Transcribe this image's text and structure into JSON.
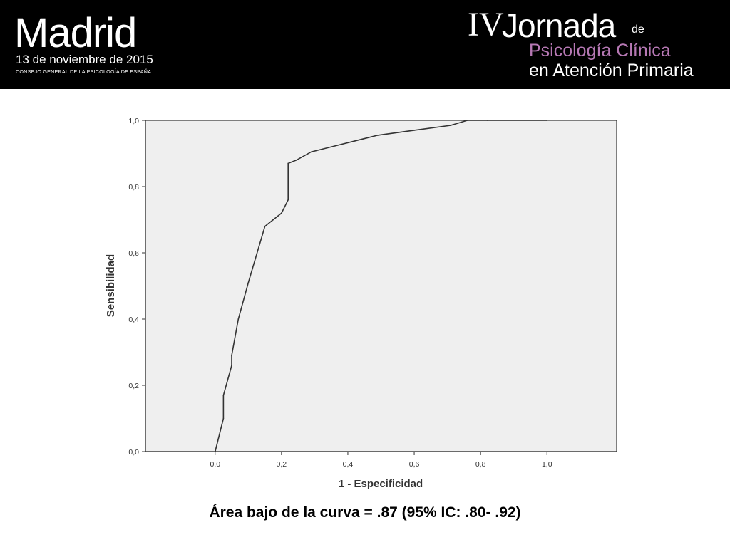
{
  "header": {
    "city": "Madrid",
    "date": "13 de noviembre de 2015",
    "organization": "CONSEJO GENERAL DE LA PSICOLOGÍA DE ESPAÑA",
    "event_number": "IV",
    "event_word": "Jornada",
    "event_de": "de",
    "event_line2": "Psicología Clínica",
    "event_line3": "en Atención Primaria",
    "accent_color": "#b678b4"
  },
  "chart_data": {
    "type": "line",
    "title": "",
    "xlabel": "1 - Especificidad",
    "ylabel": "Sensibilidad",
    "xlim": [
      -0.21,
      1.21
    ],
    "ylim": [
      0,
      1
    ],
    "xticks": [
      "0,0",
      "0,2",
      "0,4",
      "0,6",
      "0,8",
      "1,0"
    ],
    "yticks": [
      "0,0",
      "0,2",
      "0,4",
      "0,6",
      "0,8",
      "1,0"
    ],
    "grid": false,
    "plot_background": "#efefef",
    "line_color": "#333333",
    "series": [
      {
        "x": [
          0.0,
          0.025,
          0.025,
          0.05,
          0.05,
          0.07,
          0.1,
          0.15,
          0.2,
          0.22,
          0.22,
          0.245,
          0.29,
          0.37,
          0.49,
          0.6,
          0.71,
          0.76,
          0.82,
          1.0
        ],
        "y": [
          0.0,
          0.1,
          0.17,
          0.26,
          0.29,
          0.4,
          0.51,
          0.68,
          0.72,
          0.76,
          0.87,
          0.88,
          0.905,
          0.925,
          0.955,
          0.97,
          0.985,
          1.0,
          1.0,
          1.0
        ]
      }
    ]
  },
  "caption": "Área bajo de la curva = .87 (95% IC: .80- .92)"
}
